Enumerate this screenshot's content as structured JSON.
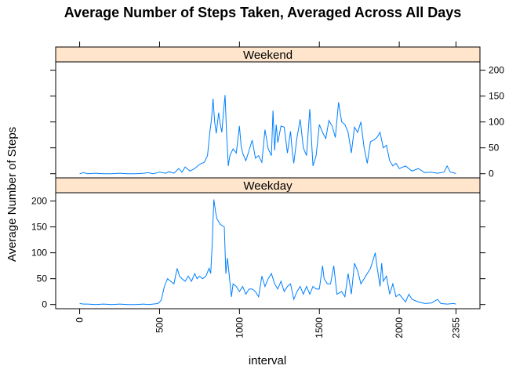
{
  "chart_data": {
    "type": "line",
    "title": "Average Number of Steps Taken, Averaged Across All Days",
    "xlabel": "interval",
    "ylabel": "Average Number of Steps",
    "xlim": [
      -150,
      2505
    ],
    "ylim": [
      -8,
      216
    ],
    "x_ticks": [
      0,
      500,
      1000,
      1500,
      2000,
      2355
    ],
    "y_ticks": [
      0,
      50,
      100,
      150,
      200
    ],
    "line_color": "#0080ff",
    "strip_color": "#ffe5cc",
    "panels": [
      {
        "name": "Weekend",
        "points": [
          [
            0,
            0
          ],
          [
            25,
            2
          ],
          [
            50,
            0
          ],
          [
            100,
            1
          ],
          [
            150,
            0
          ],
          [
            200,
            0
          ],
          [
            250,
            1
          ],
          [
            300,
            0
          ],
          [
            350,
            0
          ],
          [
            400,
            1
          ],
          [
            430,
            2
          ],
          [
            460,
            0
          ],
          [
            500,
            3
          ],
          [
            540,
            1
          ],
          [
            560,
            4
          ],
          [
            590,
            1
          ],
          [
            620,
            10
          ],
          [
            640,
            3
          ],
          [
            660,
            13
          ],
          [
            690,
            5
          ],
          [
            720,
            10
          ],
          [
            750,
            18
          ],
          [
            780,
            22
          ],
          [
            800,
            35
          ],
          [
            815,
            80
          ],
          [
            825,
            105
          ],
          [
            835,
            145
          ],
          [
            845,
            100
          ],
          [
            855,
            78
          ],
          [
            870,
            118
          ],
          [
            880,
            95
          ],
          [
            890,
            80
          ],
          [
            900,
            120
          ],
          [
            910,
            152
          ],
          [
            920,
            75
          ],
          [
            930,
            15
          ],
          [
            940,
            35
          ],
          [
            960,
            48
          ],
          [
            980,
            40
          ],
          [
            1000,
            92
          ],
          [
            1010,
            55
          ],
          [
            1020,
            40
          ],
          [
            1040,
            25
          ],
          [
            1060,
            45
          ],
          [
            1080,
            65
          ],
          [
            1100,
            30
          ],
          [
            1120,
            35
          ],
          [
            1140,
            22
          ],
          [
            1160,
            85
          ],
          [
            1180,
            48
          ],
          [
            1200,
            35
          ],
          [
            1210,
            122
          ],
          [
            1220,
            45
          ],
          [
            1230,
            95
          ],
          [
            1240,
            60
          ],
          [
            1260,
            92
          ],
          [
            1280,
            90
          ],
          [
            1300,
            40
          ],
          [
            1320,
            82
          ],
          [
            1330,
            45
          ],
          [
            1340,
            20
          ],
          [
            1360,
            70
          ],
          [
            1380,
            105
          ],
          [
            1400,
            50
          ],
          [
            1420,
            35
          ],
          [
            1440,
            125
          ],
          [
            1460,
            15
          ],
          [
            1480,
            35
          ],
          [
            1500,
            95
          ],
          [
            1520,
            80
          ],
          [
            1540,
            68
          ],
          [
            1560,
            103
          ],
          [
            1580,
            92
          ],
          [
            1600,
            70
          ],
          [
            1620,
            138
          ],
          [
            1640,
            100
          ],
          [
            1660,
            95
          ],
          [
            1680,
            80
          ],
          [
            1700,
            40
          ],
          [
            1720,
            90
          ],
          [
            1740,
            80
          ],
          [
            1760,
            100
          ],
          [
            1780,
            50
          ],
          [
            1800,
            20
          ],
          [
            1820,
            62
          ],
          [
            1840,
            65
          ],
          [
            1860,
            70
          ],
          [
            1880,
            80
          ],
          [
            1900,
            50
          ],
          [
            1920,
            55
          ],
          [
            1940,
            25
          ],
          [
            1960,
            15
          ],
          [
            1980,
            20
          ],
          [
            2000,
            10
          ],
          [
            2040,
            15
          ],
          [
            2080,
            5
          ],
          [
            2120,
            10
          ],
          [
            2160,
            2
          ],
          [
            2200,
            3
          ],
          [
            2240,
            1
          ],
          [
            2280,
            3
          ],
          [
            2300,
            15
          ],
          [
            2320,
            3
          ],
          [
            2340,
            2
          ],
          [
            2355,
            0
          ]
        ]
      },
      {
        "name": "Weekday",
        "points": [
          [
            0,
            2
          ],
          [
            25,
            1
          ],
          [
            50,
            1
          ],
          [
            100,
            0
          ],
          [
            150,
            1
          ],
          [
            200,
            0
          ],
          [
            250,
            1
          ],
          [
            300,
            0
          ],
          [
            350,
            0
          ],
          [
            400,
            1
          ],
          [
            430,
            0
          ],
          [
            460,
            1
          ],
          [
            490,
            2
          ],
          [
            510,
            8
          ],
          [
            530,
            35
          ],
          [
            550,
            50
          ],
          [
            570,
            45
          ],
          [
            590,
            40
          ],
          [
            600,
            55
          ],
          [
            610,
            70
          ],
          [
            625,
            55
          ],
          [
            640,
            50
          ],
          [
            660,
            45
          ],
          [
            680,
            55
          ],
          [
            700,
            45
          ],
          [
            720,
            60
          ],
          [
            735,
            50
          ],
          [
            750,
            55
          ],
          [
            770,
            50
          ],
          [
            790,
            55
          ],
          [
            810,
            70
          ],
          [
            820,
            60
          ],
          [
            830,
            120
          ],
          [
            835,
            165
          ],
          [
            840,
            203
          ],
          [
            850,
            180
          ],
          [
            860,
            165
          ],
          [
            880,
            155
          ],
          [
            905,
            150
          ],
          [
            915,
            60
          ],
          [
            925,
            90
          ],
          [
            935,
            60
          ],
          [
            950,
            15
          ],
          [
            960,
            40
          ],
          [
            980,
            35
          ],
          [
            1000,
            25
          ],
          [
            1020,
            35
          ],
          [
            1040,
            20
          ],
          [
            1060,
            30
          ],
          [
            1080,
            30
          ],
          [
            1100,
            25
          ],
          [
            1120,
            15
          ],
          [
            1140,
            55
          ],
          [
            1160,
            35
          ],
          [
            1180,
            50
          ],
          [
            1200,
            60
          ],
          [
            1220,
            40
          ],
          [
            1240,
            30
          ],
          [
            1260,
            45
          ],
          [
            1280,
            25
          ],
          [
            1300,
            35
          ],
          [
            1320,
            40
          ],
          [
            1340,
            10
          ],
          [
            1360,
            25
          ],
          [
            1380,
            35
          ],
          [
            1400,
            20
          ],
          [
            1420,
            35
          ],
          [
            1440,
            20
          ],
          [
            1460,
            35
          ],
          [
            1480,
            30
          ],
          [
            1500,
            30
          ],
          [
            1520,
            75
          ],
          [
            1530,
            50
          ],
          [
            1550,
            40
          ],
          [
            1570,
            40
          ],
          [
            1590,
            75
          ],
          [
            1610,
            20
          ],
          [
            1640,
            25
          ],
          [
            1660,
            15
          ],
          [
            1680,
            60
          ],
          [
            1700,
            20
          ],
          [
            1720,
            80
          ],
          [
            1740,
            65
          ],
          [
            1760,
            40
          ],
          [
            1780,
            50
          ],
          [
            1800,
            60
          ],
          [
            1820,
            70
          ],
          [
            1840,
            90
          ],
          [
            1850,
            100
          ],
          [
            1860,
            75
          ],
          [
            1880,
            35
          ],
          [
            1890,
            80
          ],
          [
            1900,
            45
          ],
          [
            1920,
            55
          ],
          [
            1940,
            20
          ],
          [
            1960,
            40
          ],
          [
            1980,
            15
          ],
          [
            2000,
            20
          ],
          [
            2040,
            5
          ],
          [
            2060,
            20
          ],
          [
            2080,
            10
          ],
          [
            2120,
            5
          ],
          [
            2160,
            2
          ],
          [
            2200,
            3
          ],
          [
            2240,
            10
          ],
          [
            2260,
            2
          ],
          [
            2300,
            1
          ],
          [
            2340,
            2
          ],
          [
            2355,
            1
          ]
        ]
      }
    ]
  }
}
